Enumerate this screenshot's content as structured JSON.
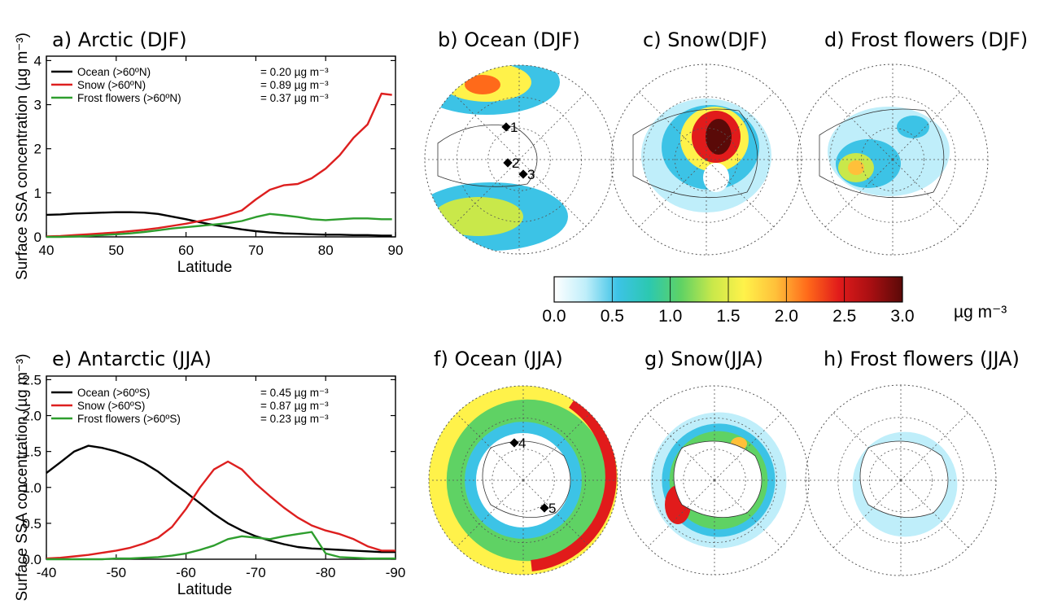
{
  "chart_data": [
    {
      "panel": "a",
      "type": "line",
      "title": "a) Arctic (DJF)",
      "xlabel": "Latitude",
      "ylabel": "Surface SSA concentration (µg m⁻³)",
      "xlim": [
        40,
        90
      ],
      "ylim": [
        0,
        4.1
      ],
      "xticks": [
        "40",
        "50",
        "60",
        "70",
        "80",
        "90"
      ],
      "yticks": [
        "0",
        "1",
        "2",
        "3",
        "4"
      ],
      "x": [
        40,
        42,
        44,
        46,
        48,
        50,
        52,
        54,
        56,
        58,
        60,
        62,
        64,
        66,
        68,
        70,
        72,
        74,
        76,
        78,
        80,
        82,
        84,
        86,
        88,
        89.5
      ],
      "series": [
        {
          "name": "Ocean (>60ºN)",
          "stat": "= 0.20 µg m⁻³",
          "color": "#000000",
          "values": [
            0.5,
            0.51,
            0.53,
            0.54,
            0.55,
            0.56,
            0.56,
            0.55,
            0.52,
            0.46,
            0.4,
            0.33,
            0.27,
            0.22,
            0.17,
            0.13,
            0.1,
            0.08,
            0.07,
            0.06,
            0.05,
            0.05,
            0.04,
            0.04,
            0.03,
            0.03
          ]
        },
        {
          "name": "Snow (>60ºN)",
          "stat": "= 0.89 µg m⁻³",
          "color": "#dd1f1f",
          "values": [
            0.01,
            0.02,
            0.04,
            0.06,
            0.08,
            0.1,
            0.13,
            0.16,
            0.2,
            0.25,
            0.3,
            0.36,
            0.42,
            0.5,
            0.6,
            0.85,
            1.07,
            1.17,
            1.2,
            1.33,
            1.55,
            1.85,
            2.25,
            2.55,
            3.25,
            3.22
          ]
        },
        {
          "name": "Frost flowers (>60ºN)",
          "stat": "= 0.37 µg m⁻³",
          "color": "#2e9e2e",
          "values": [
            0.0,
            0.0,
            0.01,
            0.02,
            0.04,
            0.06,
            0.08,
            0.11,
            0.15,
            0.19,
            0.22,
            0.25,
            0.28,
            0.31,
            0.36,
            0.45,
            0.52,
            0.49,
            0.45,
            0.4,
            0.38,
            0.4,
            0.42,
            0.42,
            0.4,
            0.4
          ]
        }
      ]
    },
    {
      "panel": "e",
      "type": "line",
      "title": "e) Antarctic (JJA)",
      "xlabel": "Latitude",
      "ylabel": "Surface SSA concentration (µg m⁻³)",
      "xlim": [
        -40,
        -90
      ],
      "ylim": [
        0,
        2.55
      ],
      "xticks": [
        "-40",
        "-50",
        "-60",
        "-70",
        "-80",
        "-90"
      ],
      "yticks": [
        "0.0",
        "0.5",
        "1.0",
        "1.5",
        "2.0",
        "2.5"
      ],
      "x": [
        -40,
        -42,
        -44,
        -46,
        -48,
        -50,
        -52,
        -54,
        -56,
        -58,
        -60,
        -62,
        -64,
        -66,
        -68,
        -70,
        -72,
        -74,
        -76,
        -78,
        -80,
        -82,
        -84,
        -86,
        -88,
        -90
      ],
      "series": [
        {
          "name": "Ocean (>60ºS)",
          "stat": "= 0.45 µg m⁻³",
          "color": "#000000",
          "values": [
            1.2,
            1.35,
            1.5,
            1.58,
            1.55,
            1.5,
            1.43,
            1.34,
            1.22,
            1.07,
            0.93,
            0.78,
            0.63,
            0.5,
            0.4,
            0.32,
            0.26,
            0.21,
            0.17,
            0.15,
            0.14,
            0.13,
            0.12,
            0.11,
            0.1,
            0.1
          ]
        },
        {
          "name": "Snow (>60ºS)",
          "stat": "= 0.87 µg m⁻³",
          "color": "#dd1f1f",
          "values": [
            0.01,
            0.02,
            0.04,
            0.06,
            0.09,
            0.12,
            0.16,
            0.22,
            0.3,
            0.45,
            0.7,
            1.0,
            1.25,
            1.36,
            1.25,
            1.05,
            0.88,
            0.72,
            0.58,
            0.47,
            0.4,
            0.35,
            0.28,
            0.18,
            0.12,
            0.12
          ]
        },
        {
          "name": "Frost flowers (>60ºS)",
          "stat": "= 0.23 µg m⁻³",
          "color": "#2e9e2e",
          "values": [
            0.0,
            0.0,
            0.0,
            0.0,
            0.0,
            0.01,
            0.01,
            0.02,
            0.03,
            0.05,
            0.08,
            0.13,
            0.19,
            0.28,
            0.32,
            0.3,
            0.28,
            0.32,
            0.35,
            0.38,
            0.08,
            0.03,
            0.02,
            0.01,
            0.01,
            0.01
          ]
        }
      ]
    }
  ],
  "maps": [
    {
      "panel": "b",
      "title": "b) Ocean (DJF)",
      "hemisphere": "north",
      "field": "ocean",
      "markers": [
        "1",
        "2",
        "3"
      ]
    },
    {
      "panel": "c",
      "title": "c) Snow(DJF)",
      "hemisphere": "north",
      "field": "snow",
      "markers": []
    },
    {
      "panel": "d",
      "title": "d) Frost flowers (DJF)",
      "hemisphere": "north",
      "field": "frost",
      "markers": []
    },
    {
      "panel": "f",
      "title": "f) Ocean (JJA)",
      "hemisphere": "south",
      "field": "ocean",
      "markers": [
        "4",
        "5"
      ]
    },
    {
      "panel": "g",
      "title": "g) Snow(JJA)",
      "hemisphere": "south",
      "field": "snow",
      "markers": []
    },
    {
      "panel": "h",
      "title": "h) Frost flowers (JJA)",
      "hemisphere": "south",
      "field": "frost",
      "markers": []
    }
  ],
  "colorbar": {
    "ticks": [
      "0.0",
      "0.5",
      "1.0",
      "1.5",
      "2.0",
      "2.5",
      "3.0"
    ],
    "unit": "µg m⁻³",
    "colors": [
      "#ffffff",
      "#bfeefa",
      "#3cc3e6",
      "#2cc8b0",
      "#5fd264",
      "#c9e84a",
      "#fff24a",
      "#ffc03a",
      "#ff6a1a",
      "#e11b1b",
      "#a80f12",
      "#5a0a08"
    ]
  }
}
